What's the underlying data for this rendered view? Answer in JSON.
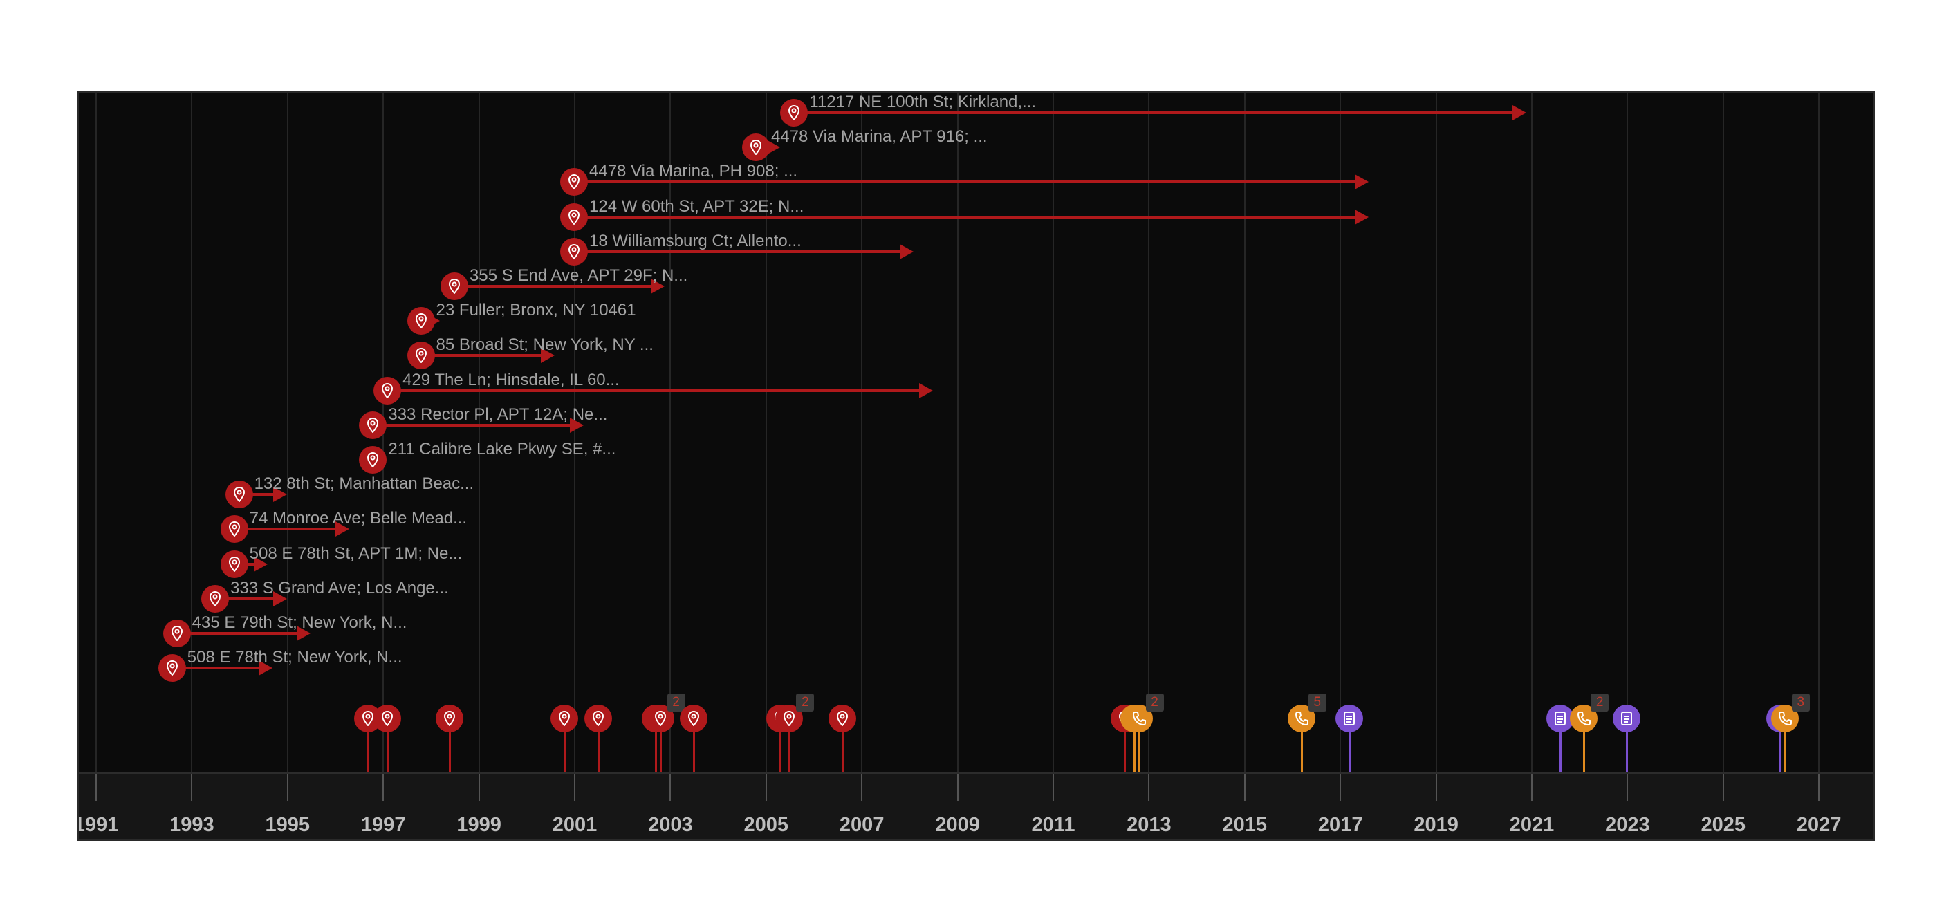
{
  "colors": {
    "address": "#b0191b",
    "phone": "#e08a1e",
    "document": "#7a4fd0",
    "background": "#0b0b0b"
  },
  "axis": {
    "min_year": 1990.2,
    "max_year": 2028.0,
    "tick_years": [
      1991,
      1993,
      1995,
      1997,
      1999,
      2001,
      2003,
      2005,
      2007,
      2009,
      2011,
      2013,
      2015,
      2017,
      2019,
      2021,
      2023,
      2025,
      2027
    ],
    "tick_labels": [
      "1991",
      "1993",
      "1995",
      "1997",
      "1999",
      "2001",
      "2003",
      "2005",
      "2007",
      "2009",
      "2011",
      "2013",
      "2015",
      "2017",
      "2019",
      "2021",
      "2023",
      "2025",
      "2027"
    ]
  },
  "addresses": [
    {
      "label": "11217 NE 100th St; Kirkland,...",
      "start": 2005.6,
      "end": 2020.9,
      "icon": "location-pin-icon"
    },
    {
      "label": "4478 Via Marina, APT 916; ...",
      "start": 2004.8,
      "end": 2005.3,
      "icon": "location-pin-icon"
    },
    {
      "label": "4478 Via Marina, PH 908; ...",
      "start": 2001.0,
      "end": 2017.6,
      "icon": "location-pin-icon"
    },
    {
      "label": "124 W 60th St, APT 32E; N...",
      "start": 2001.0,
      "end": 2017.6,
      "icon": "location-pin-icon"
    },
    {
      "label": "18 Williamsburg Ct; Allento...",
      "start": 2001.0,
      "end": 2008.1,
      "icon": "location-pin-icon"
    },
    {
      "label": "355 S End Ave, APT 29F; N...",
      "start": 1998.5,
      "end": 2002.9,
      "icon": "location-pin-icon"
    },
    {
      "label": "23 Fuller; Bronx, NY 10461",
      "start": 1997.8,
      "end": 1998.2,
      "icon": "location-pin-icon"
    },
    {
      "label": "85 Broad St; New York, NY ...",
      "start": 1997.8,
      "end": 2000.6,
      "icon": "location-pin-icon"
    },
    {
      "label": "429 The Ln; Hinsdale, IL 60...",
      "start": 1997.1,
      "end": 2008.5,
      "icon": "location-pin-icon"
    },
    {
      "label": "333 Rector Pl, APT 12A; Ne...",
      "start": 1996.8,
      "end": 2001.2,
      "icon": "location-pin-icon"
    },
    {
      "label": "211 Calibre Lake Pkwy SE, #...",
      "start": 1996.8,
      "end": 1996.8,
      "icon": "location-pin-icon"
    },
    {
      "label": "132 8th St; Manhattan Beac...",
      "start": 1994.0,
      "end": 1995.0,
      "icon": "location-pin-icon"
    },
    {
      "label": "74 Monroe Ave; Belle Mead...",
      "start": 1993.9,
      "end": 1996.3,
      "icon": "location-pin-icon"
    },
    {
      "label": "508 E 78th St, APT 1M; Ne...",
      "start": 1993.9,
      "end": 1994.6,
      "icon": "location-pin-icon"
    },
    {
      "label": "333 S Grand Ave; Los Ange...",
      "start": 1993.5,
      "end": 1995.0,
      "icon": "location-pin-icon"
    },
    {
      "label": "435 E 79th St; New York, N...",
      "start": 1992.7,
      "end": 1995.5,
      "icon": "location-pin-icon"
    },
    {
      "label": "508 E 78th St; New York, N...",
      "start": 1992.6,
      "end": 1994.7,
      "icon": "location-pin-icon"
    }
  ],
  "events": [
    {
      "year": 1996.7,
      "type": "address",
      "icon": "location-pin-icon",
      "count": ""
    },
    {
      "year": 1997.1,
      "type": "address",
      "icon": "location-pin-icon",
      "count": ""
    },
    {
      "year": 1998.4,
      "type": "address",
      "icon": "location-pin-icon",
      "count": ""
    },
    {
      "year": 2000.8,
      "type": "address",
      "icon": "location-pin-icon",
      "count": ""
    },
    {
      "year": 2001.5,
      "type": "address",
      "icon": "location-pin-icon",
      "count": ""
    },
    {
      "year": 2002.7,
      "type": "address",
      "icon": "location-pin-icon",
      "count": ""
    },
    {
      "year": 2002.8,
      "type": "address",
      "icon": "location-pin-icon",
      "count": "2"
    },
    {
      "year": 2003.5,
      "type": "address",
      "icon": "location-pin-icon",
      "count": ""
    },
    {
      "year": 2005.3,
      "type": "address",
      "icon": "location-pin-icon",
      "count": ""
    },
    {
      "year": 2005.5,
      "type": "address",
      "icon": "location-pin-icon",
      "count": "2"
    },
    {
      "year": 2006.6,
      "type": "address",
      "icon": "location-pin-icon",
      "count": ""
    },
    {
      "year": 2012.5,
      "type": "address",
      "icon": "location-pin-icon",
      "count": ""
    },
    {
      "year": 2012.7,
      "type": "phone",
      "icon": "phone-icon",
      "count": ""
    },
    {
      "year": 2012.8,
      "type": "phone",
      "icon": "phone-icon",
      "count": "2"
    },
    {
      "year": 2016.2,
      "type": "phone",
      "icon": "phone-icon",
      "count": "5"
    },
    {
      "year": 2017.2,
      "type": "document",
      "icon": "document-icon",
      "count": ""
    },
    {
      "year": 2021.6,
      "type": "document",
      "icon": "document-icon",
      "count": ""
    },
    {
      "year": 2022.1,
      "type": "phone",
      "icon": "phone-icon",
      "count": "2"
    },
    {
      "year": 2023.0,
      "type": "document",
      "icon": "document-icon",
      "count": ""
    },
    {
      "year": 2026.2,
      "type": "document",
      "icon": "document-icon",
      "count": ""
    },
    {
      "year": 2026.3,
      "type": "phone",
      "icon": "phone-icon",
      "count": "3"
    }
  ]
}
